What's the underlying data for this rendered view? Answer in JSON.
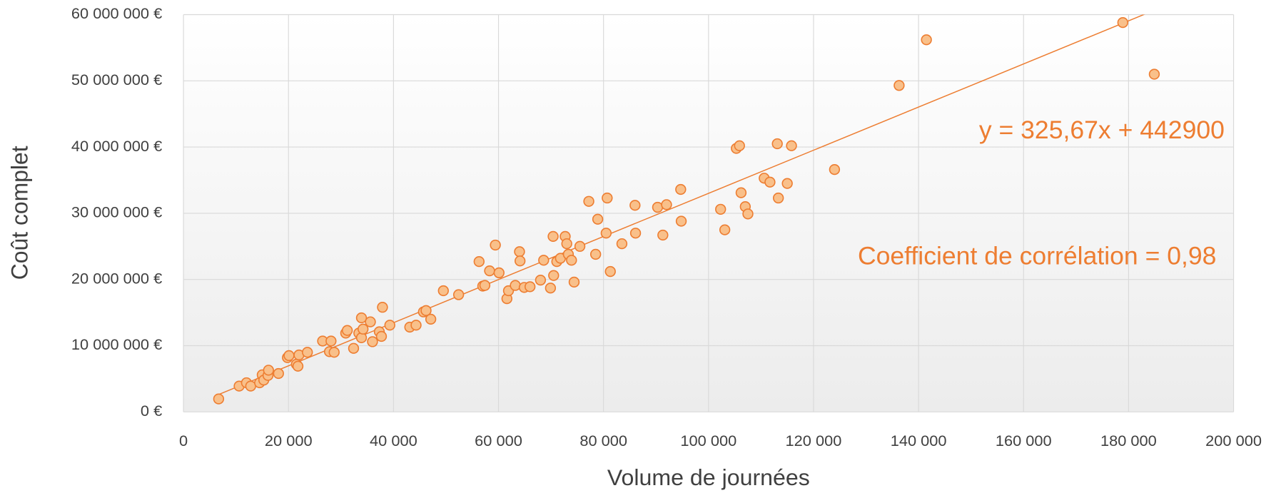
{
  "chart_data": {
    "type": "scatter",
    "xlabel": "Volume de journées",
    "ylabel": "Coût complet",
    "annotations": [
      "y = 325,67x + 442900",
      "Coefficient de corrélation = 0,98"
    ],
    "trendline": {
      "slope": 325.67,
      "intercept": 442900,
      "color": "#ed7d31"
    },
    "marker_color": "#f9c08a",
    "marker_edge": "#ed7d31",
    "grid": true,
    "xlim": [
      0,
      200000
    ],
    "ylim": [
      0,
      60000000
    ],
    "xticks": [
      0,
      {
        "value": 20000,
        "label": "20 000"
      },
      {
        "value": 40000,
        "label": "40 000"
      },
      {
        "value": 60000,
        "label": "60 000"
      },
      {
        "value": 80000,
        "label": "80 000"
      },
      {
        "value": 100000,
        "label": "100 000"
      },
      {
        "value": 120000,
        "label": "120 000"
      },
      {
        "value": 140000,
        "label": "140 000"
      },
      {
        "value": 160000,
        "label": "160 000"
      },
      {
        "value": 180000,
        "label": "180 000"
      },
      {
        "value": 200000,
        "label": "200 000"
      }
    ],
    "yticks": [
      {
        "value": 0,
        "label": "0 €"
      },
      {
        "value": 10000000,
        "label": "10 000 000 €"
      },
      {
        "value": 20000000,
        "label": "20 000 000 €"
      },
      {
        "value": 30000000,
        "label": "30 000 000 €"
      },
      {
        "value": 40000000,
        "label": "40 000 000 €"
      },
      {
        "value": 50000000,
        "label": "50 000 000 €"
      },
      {
        "value": 60000000,
        "label": "60 000 000 €"
      }
    ],
    "x": [
      6700,
      10600,
      12000,
      12800,
      14500,
      15000,
      15300,
      16100,
      16200,
      18100,
      19800,
      20100,
      21500,
      21800,
      22000,
      23600,
      26500,
      27800,
      28100,
      28700,
      30900,
      31200,
      32400,
      33400,
      33900,
      33900,
      34200,
      35600,
      36000,
      37300,
      37700,
      37900,
      39300,
      43100,
      44300,
      45700,
      46200,
      47100,
      49500,
      52400,
      56300,
      57000,
      57400,
      58300,
      59400,
      60100,
      61600,
      61900,
      63200,
      64000,
      64100,
      64900,
      66000,
      68000,
      68600,
      69900,
      70400,
      70500,
      71100,
      71800,
      72700,
      73000,
      73300,
      73900,
      74400,
      75500,
      77200,
      78500,
      78900,
      80500,
      80700,
      81300,
      83500,
      86000,
      86100,
      90300,
      91300,
      92000,
      94700,
      94800,
      102300,
      103100,
      105300,
      105900,
      106200,
      107000,
      107500,
      110600,
      111700,
      113100,
      113300,
      115000,
      115800,
      124000,
      136300,
      141500,
      178900,
      184900
    ],
    "y": [
      1960000,
      3900000,
      4400000,
      3900000,
      4400000,
      5600000,
      4800000,
      5500000,
      6300000,
      5800000,
      8200000,
      8500000,
      7200000,
      6900000,
      8600000,
      9000000,
      10700000,
      9100000,
      10700000,
      9000000,
      11900000,
      12300000,
      9600000,
      11900000,
      14200000,
      11200000,
      12500000,
      13600000,
      10600000,
      12100000,
      11400000,
      15800000,
      13100000,
      12800000,
      13100000,
      15100000,
      15300000,
      14000000,
      18300000,
      17700000,
      22700000,
      19000000,
      19100000,
      21300000,
      25200000,
      21000000,
      17100000,
      18300000,
      19100000,
      24200000,
      22800000,
      18800000,
      18900000,
      19900000,
      22900000,
      18700000,
      26500000,
      20600000,
      22700000,
      23200000,
      26500000,
      25400000,
      23800000,
      22900000,
      19600000,
      25000000,
      31800000,
      23800000,
      29100000,
      27000000,
      32300000,
      21200000,
      25400000,
      31200000,
      27000000,
      30900000,
      26700000,
      31300000,
      33600000,
      28800000,
      30600000,
      27500000,
      39800000,
      40200000,
      33100000,
      31000000,
      29900000,
      35300000,
      34700000,
      40500000,
      32300000,
      34500000,
      40200000,
      36600000,
      49300000,
      56200000,
      58800000,
      51000000
    ]
  }
}
